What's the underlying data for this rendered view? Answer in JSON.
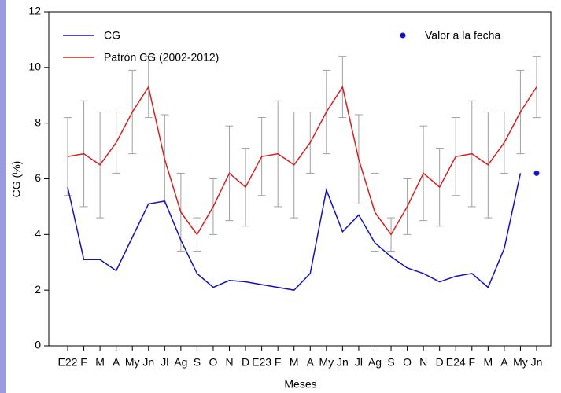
{
  "chart_data": {
    "type": "line",
    "xlabel": "Meses",
    "ylabel": "CG (%)",
    "categories": [
      "E22",
      "F",
      "M",
      "A",
      "My",
      "Jn",
      "Jl",
      "Ag",
      "S",
      "O",
      "N",
      "D",
      "E23",
      "F",
      "M",
      "A",
      "My",
      "Jn",
      "Jl",
      "Ag",
      "S",
      "O",
      "N",
      "D",
      "E24",
      "F",
      "M",
      "A",
      "My",
      "Jn"
    ],
    "ylim": [
      0,
      12
    ],
    "yticks": [
      0,
      2,
      4,
      6,
      8,
      10,
      12
    ],
    "series": [
      {
        "name": "CG",
        "color": "#1414b4",
        "values": [
          5.7,
          3.1,
          3.1,
          2.7,
          3.9,
          5.1,
          5.2,
          3.8,
          2.6,
          2.1,
          2.35,
          2.3,
          2.2,
          2.1,
          2.0,
          2.6,
          5.6,
          4.1,
          4.7,
          3.7,
          3.2,
          2.8,
          2.6,
          2.3,
          2.5,
          2.6,
          2.1,
          3.5,
          6.2,
          null
        ]
      },
      {
        "name": "Patrón CG (2002-2012)",
        "color": "#d42020",
        "values": [
          6.8,
          6.9,
          6.5,
          7.3,
          8.4,
          9.3,
          6.7,
          4.8,
          4.0,
          5.0,
          6.2,
          5.7,
          6.8,
          6.9,
          6.5,
          7.3,
          8.4,
          9.3,
          6.7,
          4.8,
          4.0,
          5.0,
          6.2,
          5.7,
          6.8,
          6.9,
          6.5,
          7.3,
          8.4,
          9.3
        ],
        "low": [
          5.4,
          5.0,
          4.6,
          6.2,
          6.9,
          8.2,
          5.1,
          3.4,
          3.4,
          4.0,
          4.5,
          4.3,
          5.4,
          5.0,
          4.6,
          6.2,
          6.9,
          8.2,
          5.1,
          3.4,
          3.4,
          4.0,
          4.5,
          4.3,
          5.4,
          5.0,
          4.6,
          6.2,
          6.9,
          8.2
        ],
        "high": [
          8.2,
          8.8,
          8.4,
          8.4,
          9.9,
          10.4,
          8.3,
          6.2,
          4.6,
          6.0,
          7.9,
          7.1,
          8.2,
          8.8,
          8.4,
          8.4,
          9.9,
          10.4,
          8.3,
          6.2,
          4.6,
          6.0,
          7.9,
          7.1,
          8.2,
          8.8,
          8.4,
          8.4,
          9.9,
          10.4
        ],
        "error_color": "#a0a0a0"
      },
      {
        "name": "Valor a la fecha",
        "color": "#1414c8",
        "marker": "dot",
        "values": [
          null,
          null,
          null,
          null,
          null,
          null,
          null,
          null,
          null,
          null,
          null,
          null,
          null,
          null,
          null,
          null,
          null,
          null,
          null,
          null,
          null,
          null,
          null,
          null,
          null,
          null,
          null,
          null,
          null,
          6.2
        ]
      }
    ]
  }
}
